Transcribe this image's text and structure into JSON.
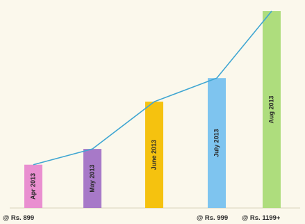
{
  "chart_data": {
    "type": "bar",
    "categories": [
      "Apr 2013",
      "May 2013",
      "June 2013",
      "July 2013",
      "Aug 2013"
    ],
    "values": [
      22,
      30,
      54,
      66,
      100
    ],
    "colors": [
      "#e98fd0",
      "#a779c8",
      "#f5c20f",
      "#7ec4ef",
      "#aedd7d"
    ],
    "trend_line": true,
    "trend_color": "#3fa6d2",
    "price_labels": [
      "@ Rs. 899",
      "@ Rs. 999",
      "@ Rs. 1199+"
    ],
    "title": "",
    "xlabel": "",
    "ylabel": "",
    "ylim": [
      0,
      100
    ],
    "grid": false,
    "legend": "none"
  }
}
